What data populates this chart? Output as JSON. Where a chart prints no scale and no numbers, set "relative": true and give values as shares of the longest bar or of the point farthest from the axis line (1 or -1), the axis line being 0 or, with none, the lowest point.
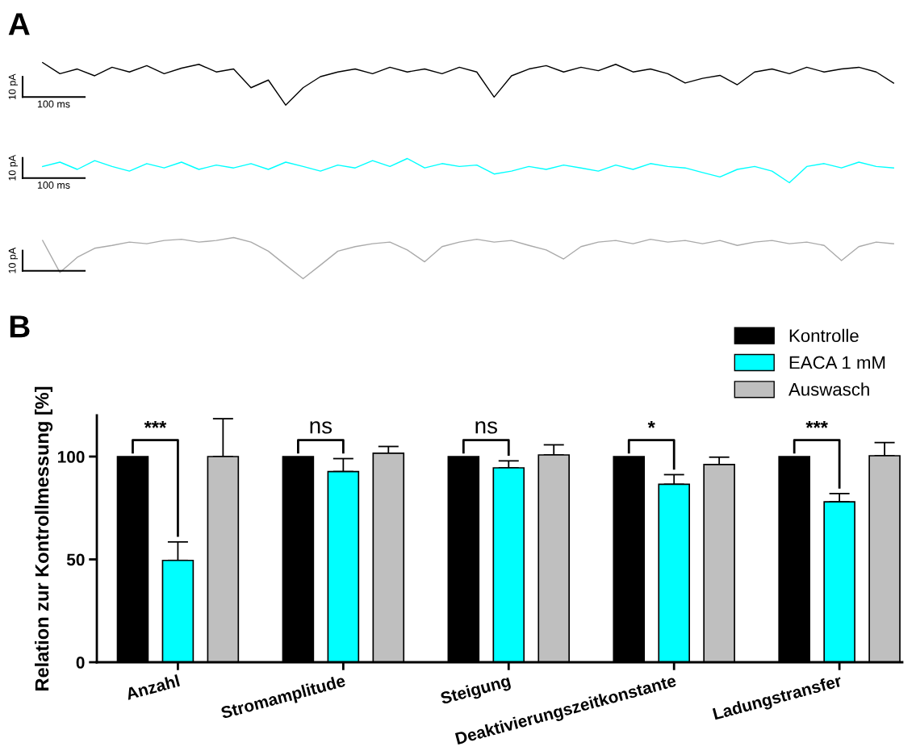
{
  "chart_data": [
    {
      "type": "line",
      "title": "A",
      "relative": true,
      "annotations": [
        "10 pA",
        "100 ms"
      ],
      "categories": [
        null,
        null,
        null,
        null,
        null,
        null,
        null,
        null,
        null,
        null,
        null,
        null,
        null,
        null,
        null,
        null,
        null,
        null,
        null,
        null,
        null,
        null,
        null,
        null,
        null,
        null,
        null,
        null,
        null,
        null,
        null,
        null,
        null,
        null,
        null,
        null,
        null,
        null,
        null,
        null,
        null,
        null,
        null,
        null,
        null,
        null,
        null,
        null,
        null,
        null
      ],
      "series": [
        {
          "color": "#000000",
          "values": [
            1,
            0.74,
            0.85,
            0.69,
            0.89,
            0.78,
            0.93,
            0.74,
            0.87,
            0.96,
            0.78,
            0.85,
            0.41,
            0.59,
            0,
            0.41,
            0.67,
            0.78,
            0.85,
            0.74,
            0.89,
            0.78,
            0.85,
            0.74,
            0.89,
            0.78,
            0.19,
            0.69,
            0.85,
            0.93,
            0.78,
            0.89,
            0.81,
            0.96,
            0.78,
            0.85,
            0.74,
            0.52,
            0.63,
            0.7,
            0.48,
            0.78,
            0.85,
            0.74,
            0.89,
            0.78,
            0.85,
            0.89,
            0.78,
            0.52
          ]
        }
      ]
    },
    {
      "type": "line",
      "relative": true,
      "annotations": [
        "10 pA",
        "100 ms"
      ],
      "categories": [
        null,
        null,
        null,
        null,
        null,
        null,
        null,
        null,
        null,
        null,
        null,
        null,
        null,
        null,
        null,
        null,
        null,
        null,
        null,
        null,
        null,
        null,
        null,
        null,
        null,
        null,
        null,
        null,
        null,
        null,
        null,
        null,
        null,
        null,
        null,
        null,
        null,
        null,
        null,
        null,
        null,
        null,
        null,
        null,
        null,
        null,
        null,
        null,
        null,
        null
      ],
      "series": [
        {
          "color": "#00ffff",
          "values": [
            0.67,
            0.85,
            0.55,
            0.91,
            0.67,
            0.48,
            0.79,
            0.61,
            0.85,
            0.55,
            0.73,
            0.61,
            0.79,
            0.55,
            0.85,
            0.67,
            0.48,
            0.73,
            0.61,
            0.91,
            0.67,
            1,
            0.61,
            0.79,
            0.67,
            0.73,
            0.36,
            0.48,
            0.67,
            0.55,
            0.73,
            0.61,
            0.48,
            0.73,
            0.55,
            0.79,
            0.67,
            0.61,
            0.42,
            0.24,
            0.55,
            0.67,
            0.48,
            0,
            0.67,
            0.79,
            0.61,
            0.85,
            0.67,
            0.61
          ]
        }
      ]
    },
    {
      "type": "line",
      "relative": true,
      "annotations": [
        "10 pA"
      ],
      "categories": [
        null,
        null,
        null,
        null,
        null,
        null,
        null,
        null,
        null,
        null,
        null,
        null,
        null,
        null,
        null,
        null,
        null,
        null,
        null,
        null,
        null,
        null,
        null,
        null,
        null,
        null,
        null,
        null,
        null,
        null,
        null,
        null,
        null,
        null,
        null,
        null,
        null,
        null,
        null,
        null,
        null,
        null,
        null,
        null,
        null,
        null,
        null,
        null,
        null,
        null
      ],
      "series": [
        {
          "color": "#aaaaaa",
          "values": [
            0.93,
            0.15,
            0.52,
            0.74,
            0.81,
            0.89,
            0.85,
            0.93,
            0.96,
            0.89,
            0.93,
            1,
            0.89,
            0.67,
            0.33,
            0,
            0.33,
            0.67,
            0.78,
            0.85,
            0.89,
            0.7,
            0.41,
            0.78,
            0.89,
            0.96,
            0.89,
            0.93,
            0.81,
            0.7,
            0.48,
            0.78,
            0.89,
            0.93,
            0.85,
            0.96,
            0.89,
            0.93,
            0.85,
            0.93,
            0.81,
            0.89,
            0.93,
            0.85,
            0.89,
            0.81,
            0.44,
            0.78,
            0.89,
            0.85
          ]
        }
      ]
    },
    {
      "type": "bar",
      "title": "B",
      "ylabel": "Relation zur Kontrollmessung [%]",
      "categories": [
        "Anzahl",
        "Stromamplitude",
        "Steigung",
        "Deaktivierungszeitkonstante",
        "Ladungstransfer"
      ],
      "ylim": [
        0,
        120
      ],
      "yticks": [
        0,
        50,
        100
      ],
      "legend": "top right",
      "grid": false,
      "annotations": [
        "***",
        "ns",
        "ns",
        "*",
        "***"
      ],
      "series": [
        {
          "name": "Kontrolle",
          "color": "#000000",
          "values": [
            100,
            100,
            100,
            100,
            100
          ]
        },
        {
          "name": "EACA 1 mM",
          "color": "#00ffff",
          "values": [
            49.5,
            92.7,
            94.5,
            86.5,
            78
          ],
          "errors": [
            [
              49.5,
              58.5
            ],
            [
              92.7,
              99
            ],
            [
              94.5,
              97.9
            ],
            [
              86.5,
              91.2
            ],
            [
              78,
              82
            ]
          ]
        },
        {
          "name": "Auswasch",
          "color": "#bfbfbf",
          "values": [
            100,
            101.6,
            100.8,
            96.1,
            100.4
          ],
          "errors": [
            [
              100,
              118.4
            ],
            [
              101.6,
              104.9
            ],
            [
              100.8,
              105.7
            ],
            [
              96.1,
              99.7
            ],
            [
              100.4,
              106.8
            ]
          ]
        }
      ]
    }
  ]
}
